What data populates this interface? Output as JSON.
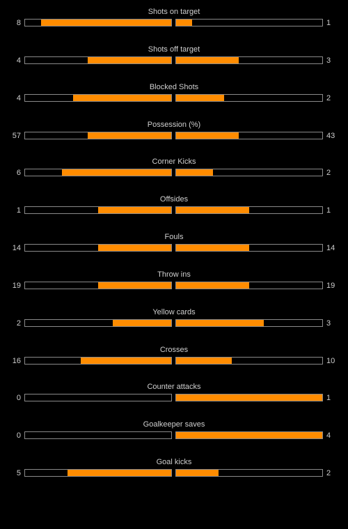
{
  "colors": {
    "fill": "#ff8c00",
    "border": "#8a8a8a",
    "background": "#000000",
    "text": "#cfcfcf"
  },
  "stats": [
    {
      "label": "Shots on target",
      "home": "8",
      "away": "1",
      "home_fill": 0.89,
      "away_fill": 0.11
    },
    {
      "label": "Shots off target",
      "home": "4",
      "away": "3",
      "home_fill": 0.57,
      "away_fill": 0.43
    },
    {
      "label": "Blocked Shots",
      "home": "4",
      "away": "2",
      "home_fill": 0.67,
      "away_fill": 0.33
    },
    {
      "label": "Possession (%)",
      "home": "57",
      "away": "43",
      "home_fill": 0.57,
      "away_fill": 0.43
    },
    {
      "label": "Corner Kicks",
      "home": "6",
      "away": "2",
      "home_fill": 0.75,
      "away_fill": 0.25
    },
    {
      "label": "Offsides",
      "home": "1",
      "away": "1",
      "home_fill": 0.5,
      "away_fill": 0.5
    },
    {
      "label": "Fouls",
      "home": "14",
      "away": "14",
      "home_fill": 0.5,
      "away_fill": 0.5
    },
    {
      "label": "Throw ins",
      "home": "19",
      "away": "19",
      "home_fill": 0.5,
      "away_fill": 0.5
    },
    {
      "label": "Yellow cards",
      "home": "2",
      "away": "3",
      "home_fill": 0.4,
      "away_fill": 0.6
    },
    {
      "label": "Crosses",
      "home": "16",
      "away": "10",
      "home_fill": 0.62,
      "away_fill": 0.38
    },
    {
      "label": "Counter attacks",
      "home": "0",
      "away": "1",
      "home_fill": 0,
      "away_fill": 1
    },
    {
      "label": "Goalkeeper saves",
      "home": "0",
      "away": "4",
      "home_fill": 0,
      "away_fill": 1
    },
    {
      "label": "Goal kicks",
      "home": "5",
      "away": "2",
      "home_fill": 0.71,
      "away_fill": 0.29
    }
  ]
}
